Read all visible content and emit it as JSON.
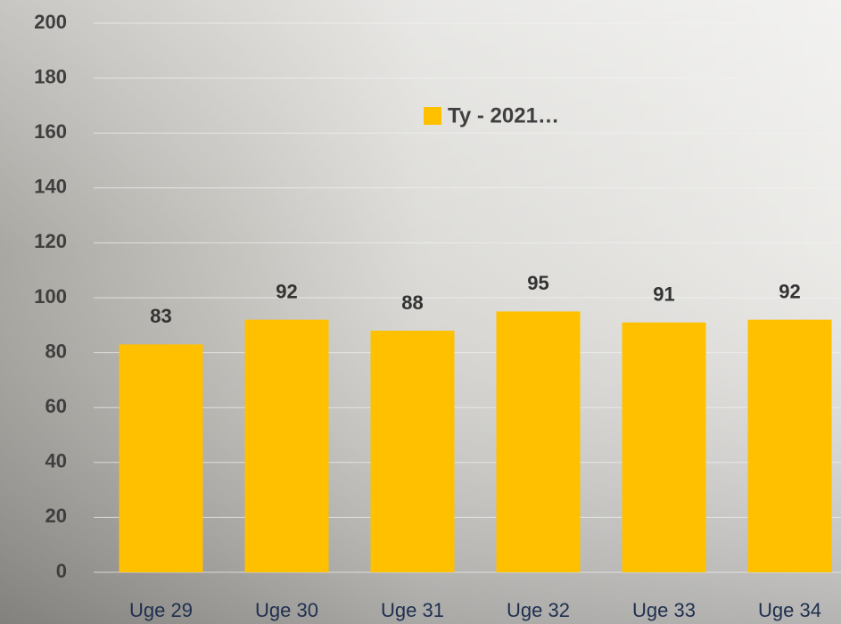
{
  "chart_data": {
    "type": "bar",
    "categories": [
      "Uge 29",
      "Uge 30",
      "Uge 31",
      "Uge 32",
      "Uge 33",
      "Uge 34"
    ],
    "series": [
      {
        "name": "Ty - 2021…",
        "color": "#ffc000",
        "values": [
          83,
          92,
          88,
          95,
          91,
          92
        ]
      }
    ],
    "ylim": [
      0,
      200
    ],
    "yticks": [
      0,
      20,
      40,
      60,
      80,
      100,
      120,
      140,
      160,
      180,
      200
    ],
    "grid": true
  }
}
